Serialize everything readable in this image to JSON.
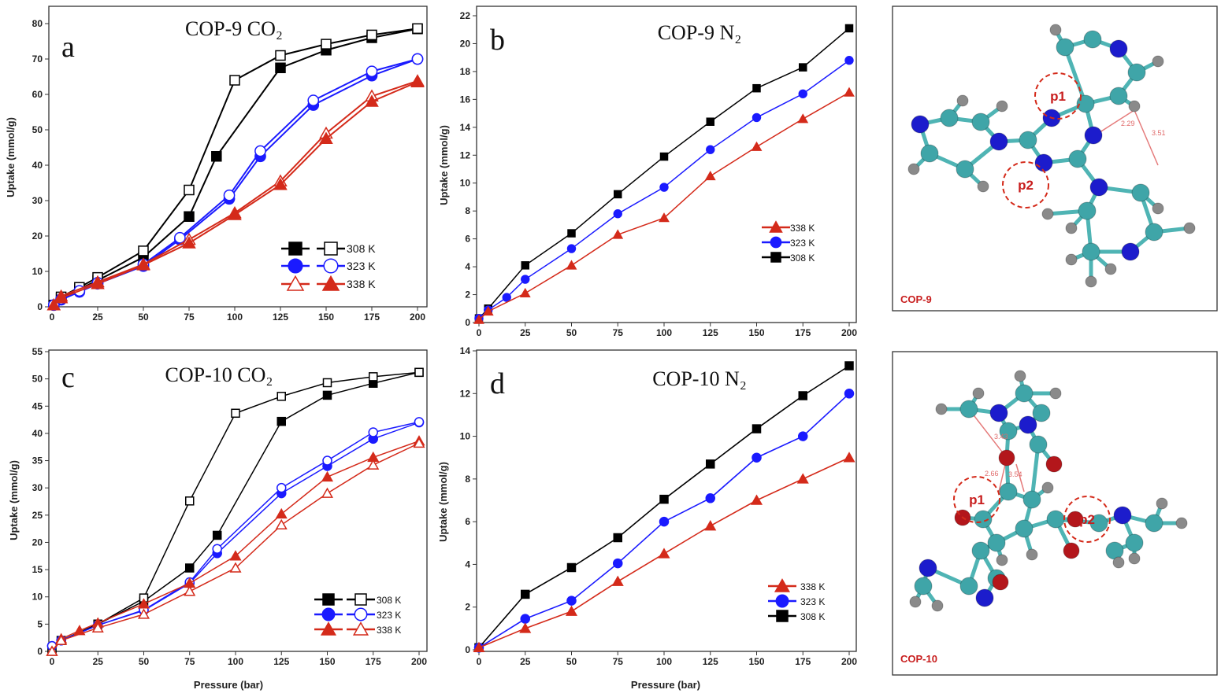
{
  "chart_data": [
    {
      "type": "line",
      "panel_letter": "a",
      "title": "COP-9 CO₂",
      "xlabel": "",
      "ylabel": "Uptake (mmol/g)",
      "xlim": [
        0,
        200
      ],
      "ylim": [
        0,
        80
      ],
      "xticks": [
        0,
        25,
        50,
        75,
        100,
        125,
        150,
        175,
        200
      ],
      "yticks": [
        0,
        10,
        20,
        30,
        40,
        50,
        60,
        70,
        80
      ],
      "legend_position": "bottom-right",
      "grid": false,
      "series": [
        {
          "name": "308 K",
          "color": "#000000",
          "marker": "square",
          "filled": true,
          "x": [
            1,
            5,
            15,
            25,
            50,
            75,
            90,
            125,
            150,
            175,
            200
          ],
          "y": [
            0.5,
            2.5,
            5,
            7.5,
            14,
            25.5,
            42.5,
            67.5,
            72.5,
            76,
            78.5
          ]
        },
        {
          "name": "308 K",
          "color": "#000000",
          "marker": "square",
          "filled": false,
          "x": [
            1,
            5,
            15,
            25,
            50,
            75,
            100,
            125,
            150,
            175,
            200
          ],
          "y": [
            0.5,
            2.8,
            5.5,
            8.3,
            15.8,
            33,
            64,
            71,
            74.2,
            76.8,
            78.6
          ]
        },
        {
          "name": "323 K",
          "color": "#1a1aff",
          "marker": "circle",
          "filled": true,
          "x": [
            1,
            5,
            15,
            25,
            50,
            70,
            97,
            114,
            143,
            175,
            200
          ],
          "y": [
            0.5,
            2,
            4.2,
            6.5,
            11.5,
            19,
            30.5,
            42.5,
            57,
            65.3,
            70
          ]
        },
        {
          "name": "323 K",
          "color": "#1a1aff",
          "marker": "circle",
          "filled": false,
          "x": [
            1,
            5,
            15,
            25,
            50,
            70,
            97,
            114,
            143,
            175,
            200
          ],
          "y": [
            0.5,
            2.2,
            4.5,
            6.8,
            12,
            19.5,
            31.5,
            44,
            58.3,
            66.5,
            70
          ]
        },
        {
          "name": "338 K",
          "color": "#d42a1a",
          "marker": "triangle",
          "filled": false,
          "x": [
            1,
            5,
            25,
            50,
            75,
            100,
            125,
            150,
            175,
            200
          ],
          "y": [
            0.5,
            3,
            7,
            12,
            19,
            26.5,
            35.5,
            49,
            59.5,
            63.8
          ]
        },
        {
          "name": "338 K",
          "color": "#d42a1a",
          "marker": "triangle",
          "filled": true,
          "x": [
            1,
            5,
            25,
            50,
            75,
            100,
            125,
            150,
            175,
            200
          ],
          "y": [
            0.5,
            2.5,
            6.5,
            11.8,
            18,
            26,
            34.5,
            47.5,
            58,
            63.5
          ]
        }
      ],
      "legend": [
        {
          "label": "308 K",
          "color": "#000000",
          "marker": "square",
          "fills": [
            true,
            false
          ]
        },
        {
          "label": "323 K",
          "color": "#1a1aff",
          "marker": "circle",
          "fills": [
            true,
            false
          ]
        },
        {
          "label": "338 K",
          "color": "#d42a1a",
          "marker": "triangle",
          "fills": [
            false,
            true
          ]
        }
      ]
    },
    {
      "type": "line",
      "panel_letter": "b",
      "title": "COP-9 N₂",
      "xlabel": "",
      "ylabel": "Uptake (mmol/g)",
      "xlim": [
        0,
        200
      ],
      "ylim": [
        0,
        22
      ],
      "xticks": [
        0,
        25,
        50,
        75,
        100,
        125,
        150,
        175,
        200
      ],
      "yticks": [
        0,
        2,
        4,
        6,
        8,
        10,
        12,
        14,
        16,
        18,
        20,
        22
      ],
      "legend_position": "center-right",
      "grid": false,
      "series": [
        {
          "name": "308 K",
          "color": "#000000",
          "marker": "square",
          "filled": true,
          "x": [
            0,
            5,
            25,
            50,
            75,
            100,
            125,
            150,
            175,
            200
          ],
          "y": [
            0.3,
            1.0,
            4.1,
            6.4,
            9.2,
            11.9,
            14.4,
            16.8,
            18.3,
            21.1
          ]
        },
        {
          "name": "323 K",
          "color": "#1a1aff",
          "marker": "circle",
          "filled": true,
          "x": [
            0,
            5,
            15,
            25,
            50,
            75,
            100,
            125,
            150,
            175,
            200
          ],
          "y": [
            0.3,
            0.9,
            1.8,
            3.1,
            5.3,
            7.8,
            9.7,
            12.4,
            14.7,
            16.4,
            18.8
          ]
        },
        {
          "name": "338 K",
          "color": "#d42a1a",
          "marker": "triangle",
          "filled": true,
          "x": [
            0,
            5,
            25,
            50,
            75,
            100,
            125,
            150,
            175,
            200
          ],
          "y": [
            0.2,
            0.8,
            2.1,
            4.1,
            6.3,
            7.5,
            10.5,
            12.6,
            14.6,
            16.5
          ]
        }
      ],
      "legend": [
        {
          "label": "338 K",
          "color": "#d42a1a",
          "marker": "triangle",
          "fills": [
            true
          ]
        },
        {
          "label": "323 K",
          "color": "#1a1aff",
          "marker": "circle",
          "fills": [
            true
          ]
        },
        {
          "label": "308 K",
          "color": "#000000",
          "marker": "square",
          "fills": [
            true
          ]
        }
      ]
    },
    {
      "type": "line",
      "panel_letter": "c",
      "title": "COP-10 CO₂",
      "xlabel": "Pressure (bar)",
      "ylabel": "Uptake (mmol/g)",
      "xlim": [
        0,
        200
      ],
      "ylim": [
        0,
        55
      ],
      "xticks": [
        0,
        25,
        50,
        75,
        100,
        125,
        150,
        175,
        200
      ],
      "yticks": [
        0,
        5,
        10,
        15,
        20,
        25,
        30,
        35,
        40,
        45,
        50,
        55
      ],
      "legend_position": "bottom-right",
      "grid": false,
      "series": [
        {
          "name": "308 K",
          "color": "#000000",
          "marker": "square",
          "filled": true,
          "x": [
            0,
            5,
            25,
            50,
            75,
            90,
            125,
            150,
            175,
            200
          ],
          "y": [
            0.5,
            2,
            5,
            9.2,
            15.3,
            21.3,
            42.2,
            47,
            49.2,
            51.2
          ]
        },
        {
          "name": "308 K",
          "color": "#000000",
          "marker": "square",
          "filled": false,
          "x": [
            0,
            5,
            25,
            50,
            75,
            100,
            125,
            150,
            175,
            200
          ],
          "y": [
            0.5,
            2,
            5,
            9.8,
            27.6,
            43.7,
            46.8,
            49.3,
            50.4,
            51.2
          ]
        },
        {
          "name": "323 K",
          "color": "#1a1aff",
          "marker": "circle",
          "filled": true,
          "x": [
            0,
            5,
            25,
            50,
            75,
            90,
            125,
            150,
            175,
            200
          ],
          "y": [
            1,
            2,
            4.8,
            7.5,
            12.5,
            18,
            29,
            34,
            39,
            42
          ]
        },
        {
          "name": "323 K",
          "color": "#1a1aff",
          "marker": "circle",
          "filled": false,
          "x": [
            0,
            5,
            25,
            50,
            75,
            90,
            125,
            150,
            175,
            200
          ],
          "y": [
            1,
            2,
            4.8,
            7.6,
            12.7,
            18.8,
            30,
            35,
            40.2,
            42.1
          ]
        },
        {
          "name": "338 K",
          "color": "#d42a1a",
          "marker": "triangle",
          "filled": true,
          "x": [
            0,
            5,
            15,
            25,
            50,
            75,
            100,
            125,
            150,
            175,
            200
          ],
          "y": [
            0,
            2.3,
            3.8,
            5.2,
            8.7,
            12.5,
            17.5,
            25.2,
            32,
            35.6,
            38.6
          ]
        },
        {
          "name": "338 K",
          "color": "#d42a1a",
          "marker": "triangle",
          "filled": false,
          "x": [
            0,
            5,
            25,
            50,
            75,
            100,
            125,
            150,
            175,
            200
          ],
          "y": [
            0,
            2,
            4.3,
            6.8,
            11,
            15.3,
            23.2,
            29,
            34.2,
            38.2
          ]
        }
      ],
      "legend": [
        {
          "label": "308 K",
          "color": "#000000",
          "marker": "square",
          "fills": [
            true,
            false
          ]
        },
        {
          "label": "323 K",
          "color": "#1a1aff",
          "marker": "circle",
          "fills": [
            true,
            false
          ]
        },
        {
          "label": "338 K",
          "color": "#d42a1a",
          "marker": "triangle",
          "fills": [
            true,
            false
          ]
        }
      ]
    },
    {
      "type": "line",
      "panel_letter": "d",
      "title": "COP-10 N₂",
      "xlabel": "Pressure (bar)",
      "ylabel": "Uptake (mmol/g)",
      "xlim": [
        0,
        200
      ],
      "ylim": [
        0,
        14
      ],
      "xticks": [
        0,
        25,
        50,
        75,
        100,
        125,
        150,
        175,
        200
      ],
      "yticks": [
        0,
        2,
        4,
        6,
        8,
        10,
        12,
        14
      ],
      "legend_position": "bottom-right",
      "grid": false,
      "series": [
        {
          "name": "308 K",
          "color": "#000000",
          "marker": "square",
          "filled": true,
          "x": [
            0,
            25,
            50,
            75,
            100,
            125,
            150,
            175,
            200
          ],
          "y": [
            0.1,
            2.6,
            3.85,
            5.25,
            7.05,
            8.7,
            10.35,
            11.9,
            13.3
          ]
        },
        {
          "name": "323 K",
          "color": "#1a1aff",
          "marker": "circle",
          "filled": true,
          "x": [
            0,
            25,
            50,
            75,
            100,
            125,
            150,
            175,
            200
          ],
          "y": [
            0.1,
            1.45,
            2.3,
            4.05,
            6.0,
            7.1,
            9.0,
            10.0,
            12.0
          ]
        },
        {
          "name": "338 K",
          "color": "#d42a1a",
          "marker": "triangle",
          "filled": true,
          "x": [
            0,
            25,
            50,
            75,
            100,
            125,
            150,
            175,
            200
          ],
          "y": [
            0.1,
            1.0,
            1.8,
            3.2,
            4.5,
            5.8,
            7.0,
            8.0,
            9.0
          ]
        }
      ],
      "legend": [
        {
          "label": "338 K",
          "color": "#d42a1a",
          "marker": "triangle",
          "fills": [
            true
          ]
        },
        {
          "label": "323 K",
          "color": "#1a1aff",
          "marker": "circle",
          "fills": [
            true
          ]
        },
        {
          "label": "308 K",
          "color": "#000000",
          "marker": "square",
          "fills": [
            true
          ]
        }
      ]
    }
  ],
  "molecules": [
    {
      "name": "COP-9",
      "sites": [
        "p1",
        "p2"
      ],
      "distances": [
        "2.29",
        "3.51"
      ]
    },
    {
      "name": "COP-10",
      "sites": [
        "p1",
        "p2"
      ],
      "distances": [
        "3.43",
        "2.66",
        "3.54"
      ]
    }
  ],
  "colors": {
    "carbon": "#3fa5a8",
    "nitrogen": "#1c1ccc",
    "hydrogen": "#8a8a8a",
    "oxygen": "#b3161b",
    "highlight": "#d42a1a"
  }
}
